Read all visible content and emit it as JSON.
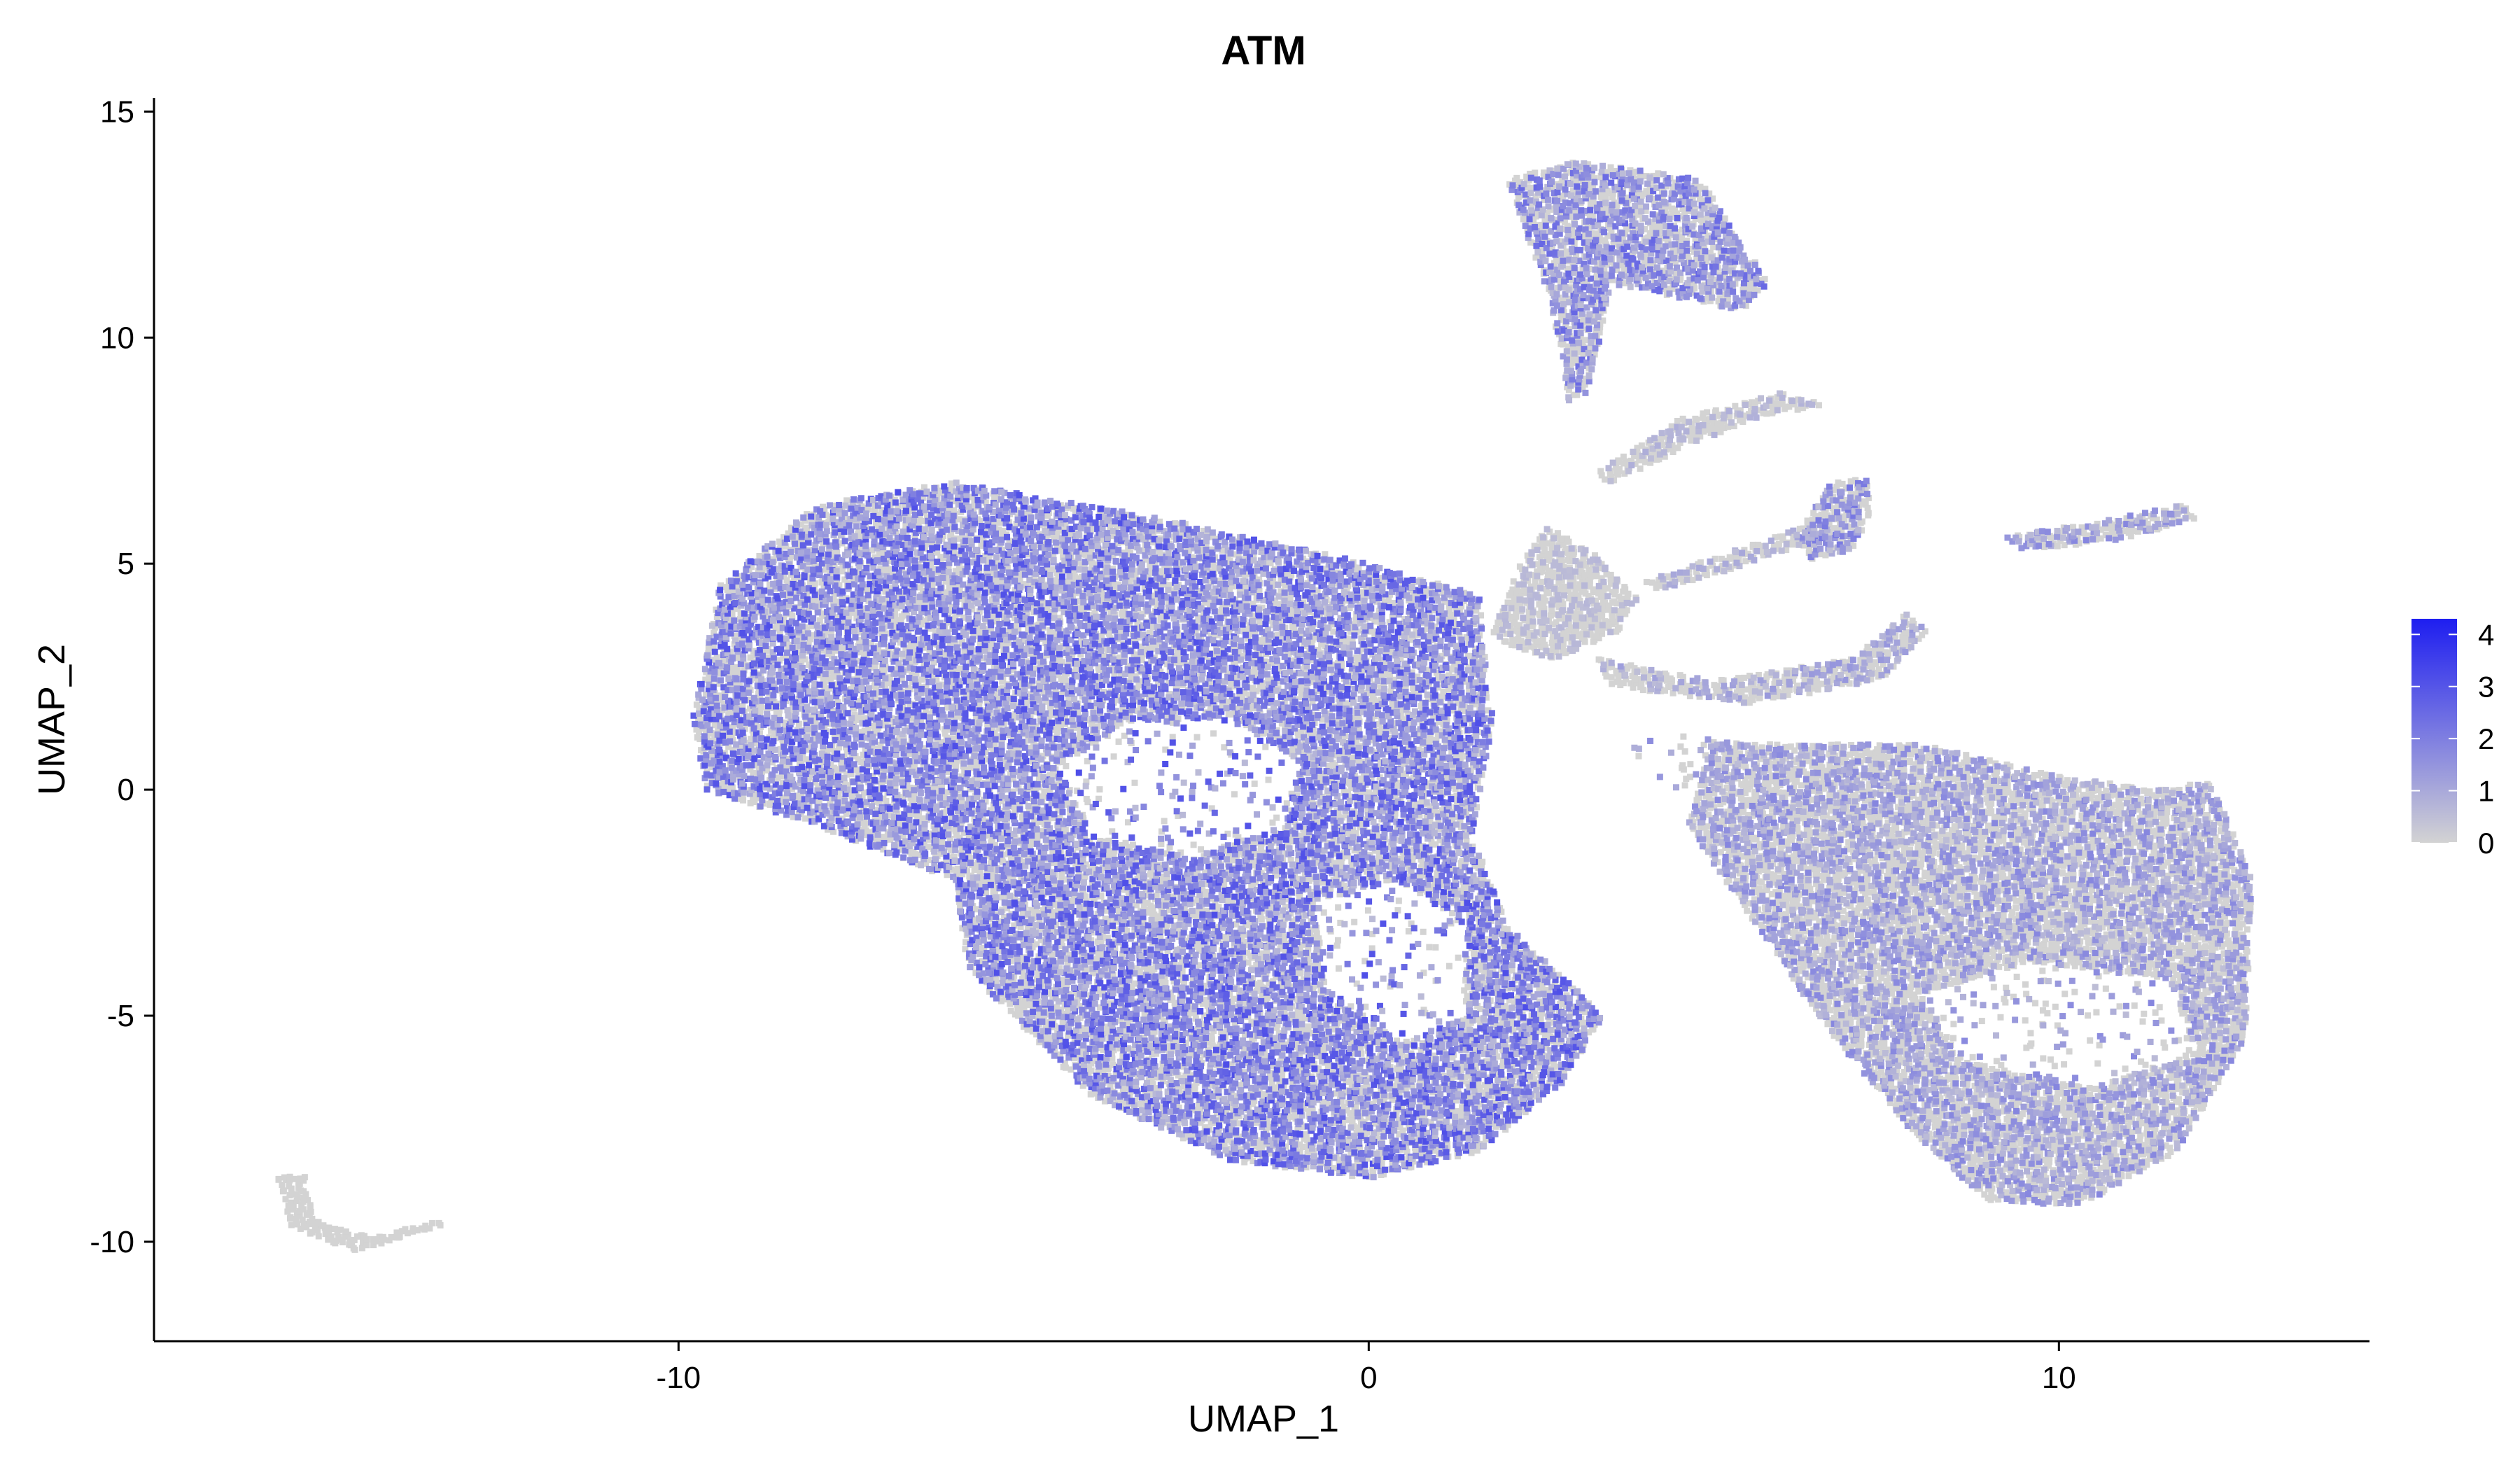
{
  "chart_data": {
    "type": "scatter",
    "title": "ATM",
    "xlabel": "UMAP_1",
    "ylabel": "UMAP_2",
    "xlim": [
      -17.6,
      14.5
    ],
    "ylim": [
      -12.2,
      15.3
    ],
    "x_ticks": [
      {
        "value": -10,
        "label": "-10"
      },
      {
        "value": 0,
        "label": "0"
      },
      {
        "value": 10,
        "label": "10"
      }
    ],
    "y_ticks": [
      {
        "value": -10,
        "label": "-10"
      },
      {
        "value": -5,
        "label": "-5"
      },
      {
        "value": 0,
        "label": "0"
      },
      {
        "value": 5,
        "label": "5"
      },
      {
        "value": 10,
        "label": "10"
      },
      {
        "value": 15,
        "label": "15"
      }
    ],
    "grid": false,
    "color_scale": {
      "low": "#d3d3d3",
      "high": "#1e1ef0",
      "min": 0,
      "max": 4.3,
      "ticks": [
        {
          "value": 0,
          "label": "0"
        },
        {
          "value": 1,
          "label": "1"
        },
        {
          "value": 2,
          "label": "2"
        },
        {
          "value": 3,
          "label": "3"
        },
        {
          "value": 4,
          "label": "4"
        }
      ],
      "legend_position": "right"
    },
    "clusters": [
      {
        "name": "main-left-body",
        "polygon": [
          [
            -9.8,
            1.5
          ],
          [
            -9.4,
            4.5
          ],
          [
            -8,
            6.3
          ],
          [
            -6,
            6.8
          ],
          [
            -3,
            6
          ],
          [
            0,
            5
          ],
          [
            1.6,
            4.3
          ],
          [
            1.8,
            1.5
          ],
          [
            1.5,
            -1
          ],
          [
            2,
            -3
          ],
          [
            3.4,
            -5
          ],
          [
            2.8,
            -6.5
          ],
          [
            1.6,
            -8
          ],
          [
            0,
            -8.6
          ],
          [
            -2,
            -8.2
          ],
          [
            -4,
            -6.8
          ],
          [
            -5.8,
            -4
          ],
          [
            -6,
            -2
          ],
          [
            -8,
            -0.8
          ],
          [
            -9.6,
            0
          ]
        ],
        "mean": 1.4
      },
      {
        "name": "hub-center",
        "polygon": [
          [
            1.8,
            3.5
          ],
          [
            2.2,
            5
          ],
          [
            2.6,
            5.8
          ],
          [
            3.3,
            5.2
          ],
          [
            3.9,
            4.2
          ],
          [
            3.6,
            3.5
          ],
          [
            2.7,
            2.9
          ],
          [
            2.1,
            3.1
          ]
        ],
        "mean": 0.1
      },
      {
        "name": "hole-a",
        "polygon": [
          [
            -4.5,
            0.5
          ],
          [
            -3.5,
            1.5
          ],
          [
            -2,
            1.6
          ],
          [
            -1,
            0.6
          ],
          [
            -1.2,
            -0.8
          ],
          [
            -2.6,
            -1.5
          ],
          [
            -4,
            -1
          ]
        ],
        "mean": -1
      },
      {
        "name": "hole-b",
        "polygon": [
          [
            -0.8,
            -2.5
          ],
          [
            0.4,
            -2
          ],
          [
            1.4,
            -3
          ],
          [
            1.4,
            -5
          ],
          [
            0.5,
            -5.6
          ],
          [
            -0.6,
            -4.4
          ]
        ],
        "mean": -1
      },
      {
        "name": "hole-c",
        "polygon": [
          [
            1.8,
            0.5
          ],
          [
            3.5,
            1.6
          ],
          [
            5,
            1.3
          ],
          [
            4.5,
            -1.5
          ],
          [
            3,
            -3.8
          ],
          [
            2.2,
            -3
          ],
          [
            1.6,
            -1
          ]
        ],
        "mean": -1
      },
      {
        "name": "right-lobe",
        "polygon": [
          [
            3.6,
            1.4
          ],
          [
            5.5,
            1
          ],
          [
            8,
            1
          ],
          [
            10,
            0.3
          ],
          [
            11.5,
            0
          ],
          [
            12.2,
            0.2
          ],
          [
            12.8,
            -2
          ],
          [
            12.7,
            -5.5
          ],
          [
            11.7,
            -8
          ],
          [
            10.3,
            -9.2
          ],
          [
            9,
            -9.1
          ],
          [
            8,
            -7.8
          ],
          [
            6.6,
            -5.2
          ],
          [
            5.4,
            -2.5
          ]
        ],
        "mean": 0.7
      },
      {
        "name": "right-hole",
        "polygon": [
          [
            8,
            -4.5
          ],
          [
            9.6,
            -3.8
          ],
          [
            11.6,
            -4.2
          ],
          [
            12,
            -5.8
          ],
          [
            10.5,
            -6.6
          ],
          [
            8.6,
            -6
          ]
        ],
        "mean": -1
      },
      {
        "name": "upper-spur",
        "polygon": [
          [
            2,
            13.5
          ],
          [
            3,
            13.9
          ],
          [
            4.8,
            13.5
          ],
          [
            5.8,
            11.2
          ],
          [
            5.4,
            10.6
          ],
          [
            3.5,
            11.2
          ],
          [
            3.2,
            8.8
          ],
          [
            2.9,
            8.6
          ],
          [
            2.6,
            11
          ]
        ],
        "mean": 1.1
      },
      {
        "name": "arc-1",
        "polygon": [
          [
            3.3,
            7
          ],
          [
            4.5,
            8.2
          ],
          [
            6,
            8.8
          ],
          [
            6.6,
            8.5
          ],
          [
            5.8,
            8.3
          ],
          [
            4.6,
            7.6
          ],
          [
            3.4,
            6.7
          ]
        ],
        "mean": 0.2
      },
      {
        "name": "cluster-mid",
        "polygon": [
          [
            6.2,
            5.6
          ],
          [
            6.7,
            6.8
          ],
          [
            7.2,
            6.9
          ],
          [
            7.3,
            6.2
          ],
          [
            7,
            5.3
          ],
          [
            6.4,
            5.1
          ]
        ],
        "mean": 0.9
      },
      {
        "name": "arc-2",
        "polygon": [
          [
            4,
            4.6
          ],
          [
            5.5,
            5.4
          ],
          [
            6.4,
            5.9
          ],
          [
            6.5,
            5.5
          ],
          [
            5.3,
            4.9
          ],
          [
            4.2,
            4.4
          ]
        ],
        "mean": 0.3
      },
      {
        "name": "arc-3",
        "polygon": [
          [
            3.3,
            2.9
          ],
          [
            5,
            2.4
          ],
          [
            7,
            2.9
          ],
          [
            7.8,
            3.9
          ],
          [
            8.1,
            3.5
          ],
          [
            7.4,
            2.4
          ],
          [
            5.5,
            1.9
          ],
          [
            3.5,
            2.3
          ]
        ],
        "mean": 0.5
      },
      {
        "name": "far-right-arc",
        "polygon": [
          [
            9.2,
            5.6
          ],
          [
            10.5,
            5.9
          ],
          [
            11.8,
            6.3
          ],
          [
            12,
            6
          ],
          [
            10.8,
            5.5
          ],
          [
            9.5,
            5.3
          ]
        ],
        "mean": 0.7
      },
      {
        "name": "bottom-left-arc",
        "polygon": [
          [
            -15.8,
            -8.6
          ],
          [
            -15.6,
            -9.7
          ],
          [
            -14.7,
            -10.2
          ],
          [
            -13.5,
            -9.7
          ],
          [
            -13.3,
            -9.5
          ],
          [
            -14.5,
            -9.9
          ],
          [
            -15.3,
            -9.5
          ],
          [
            -15.4,
            -8.5
          ]
        ],
        "mean": -1
      }
    ]
  }
}
